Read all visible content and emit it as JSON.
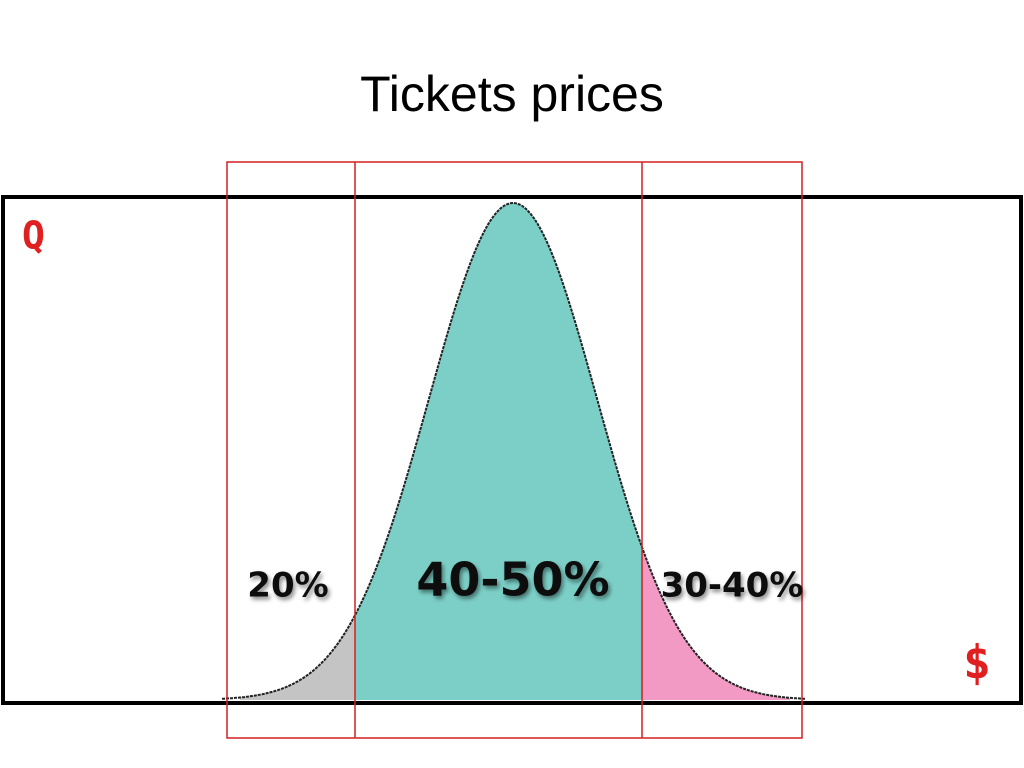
{
  "title": "Tickets prices",
  "axes": {
    "y_label": "Q",
    "x_label": "$"
  },
  "regions": [
    {
      "label": "20%"
    },
    {
      "label": "40-50%"
    },
    {
      "label": "30-40%"
    }
  ]
}
